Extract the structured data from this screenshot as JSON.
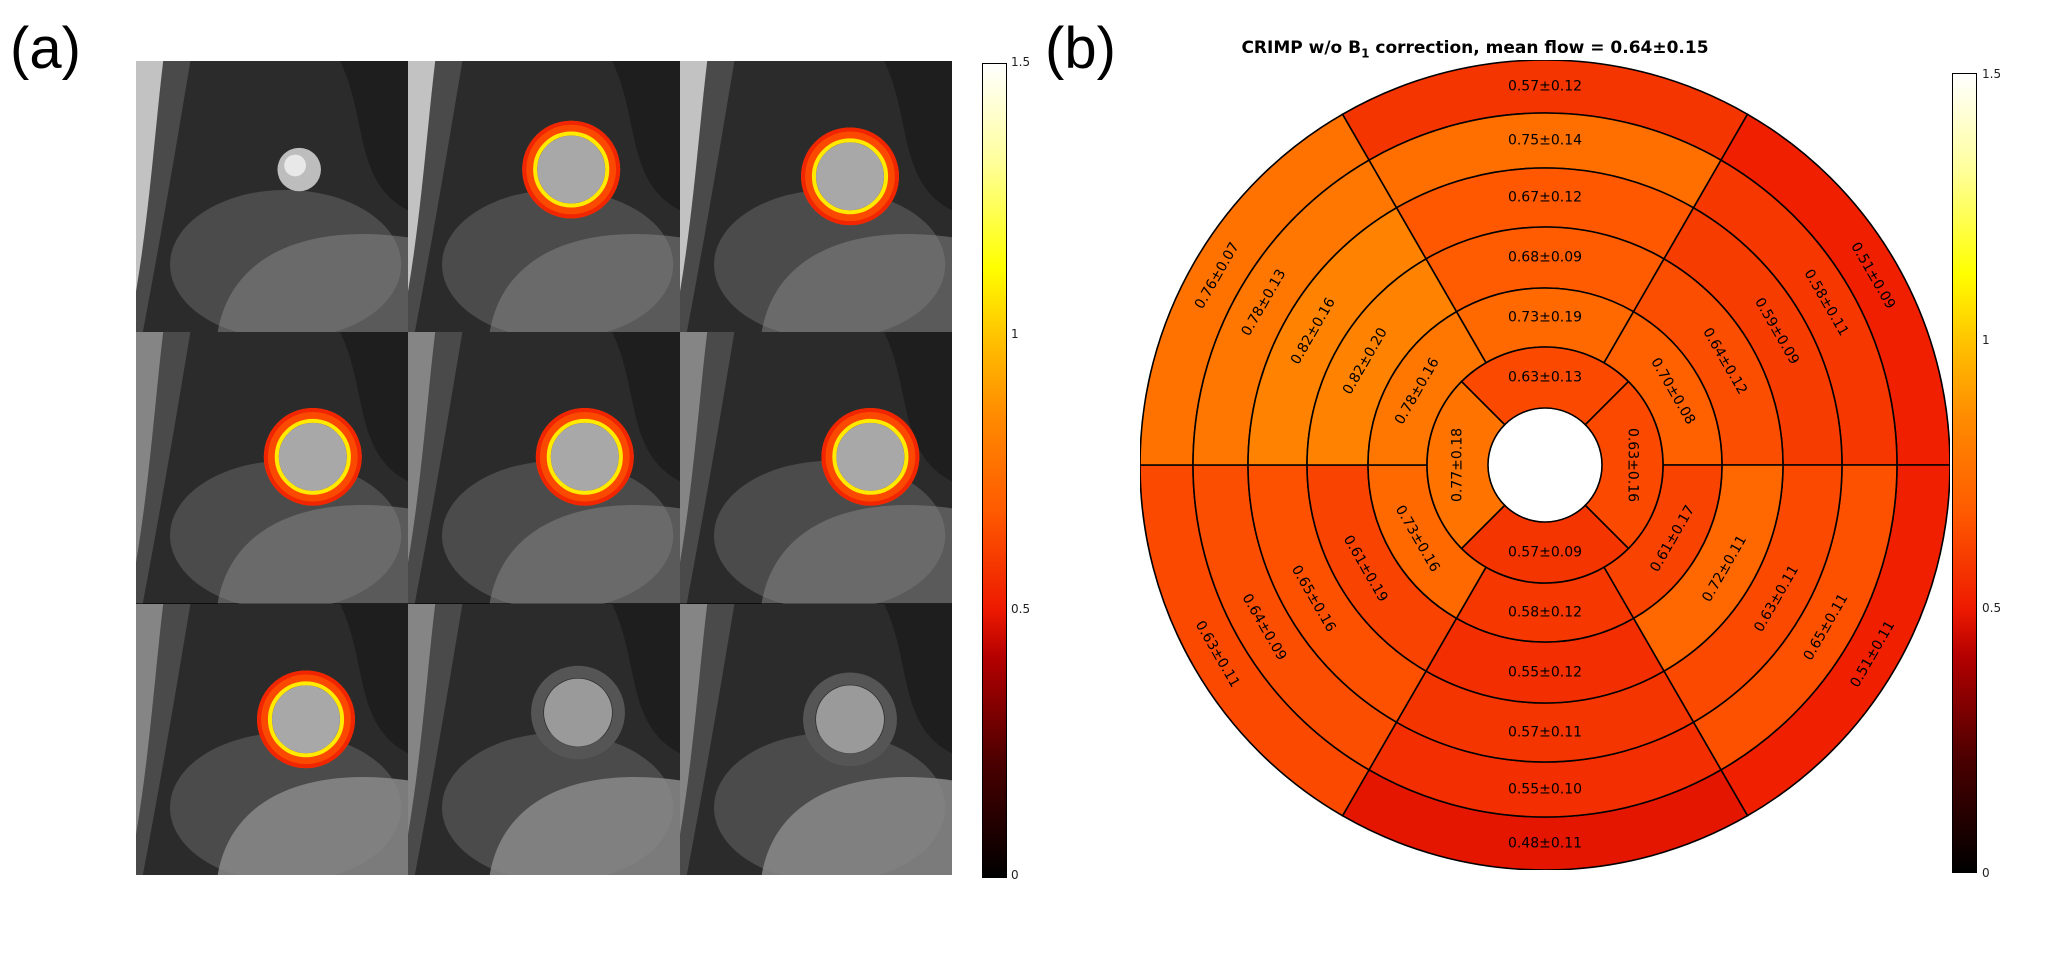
{
  "panel_labels": {
    "a": "(a)",
    "b": "(b)"
  },
  "colormap": {
    "name": "hot",
    "stops": [
      "#000000",
      "#4a0000",
      "#b40000",
      "#ee1a00",
      "#ff5a00",
      "#ff8c00",
      "#ffc000",
      "#ffff00",
      "#ffff9c",
      "#ffffff"
    ]
  },
  "images": {
    "rows": 3,
    "cols": 3,
    "overlay_present": [
      false,
      true,
      true,
      true,
      true,
      true,
      true,
      false,
      false
    ]
  },
  "colorbar_a": {
    "ticks": [
      "0",
      "0.5",
      "1",
      "1.5"
    ]
  },
  "colorbar_b": {
    "ticks": [
      "0",
      "0.5",
      "1",
      "1.5"
    ]
  },
  "chart_data": [
    {
      "type": "heatmap",
      "title": "CRIMP w/o B1 correction, mean flow = 0.64±0.15",
      "title_parts": {
        "pre": "CRIMP w/o B",
        "sub": "1",
        "post": " correction, mean flow = 0.64±0.15"
      },
      "colorbar": {
        "range": [
          0,
          1.5
        ],
        "ticks": [
          0,
          0.5,
          1,
          1.5
        ]
      },
      "segments": [
        {
          "ring": 0,
          "sector": 0,
          "value": 0.57,
          "label": "0.57±0.12"
        },
        {
          "ring": 0,
          "sector": 1,
          "value": 0.51,
          "label": "0.51±0.09"
        },
        {
          "ring": 0,
          "sector": 2,
          "value": 0.51,
          "label": "0.51±0.11"
        },
        {
          "ring": 0,
          "sector": 3,
          "value": 0.48,
          "label": "0.48±0.11"
        },
        {
          "ring": 0,
          "sector": 4,
          "value": 0.63,
          "label": "0.63±0.11"
        },
        {
          "ring": 0,
          "sector": 5,
          "value": 0.76,
          "label": "0.76±0.07"
        },
        {
          "ring": 1,
          "sector": 0,
          "value": 0.75,
          "label": "0.75±0.14"
        },
        {
          "ring": 1,
          "sector": 1,
          "value": 0.58,
          "label": "0.58±0.11"
        },
        {
          "ring": 1,
          "sector": 2,
          "value": 0.65,
          "label": "0.65±0.11"
        },
        {
          "ring": 1,
          "sector": 3,
          "value": 0.55,
          "label": "0.55±0.10"
        },
        {
          "ring": 1,
          "sector": 4,
          "value": 0.64,
          "label": "0.64±0.09"
        },
        {
          "ring": 1,
          "sector": 5,
          "value": 0.78,
          "label": "0.78±0.13"
        },
        {
          "ring": 2,
          "sector": 0,
          "value": 0.67,
          "label": "0.67±0.12"
        },
        {
          "ring": 2,
          "sector": 1,
          "value": 0.59,
          "label": "0.59±0.09"
        },
        {
          "ring": 2,
          "sector": 2,
          "value": 0.63,
          "label": "0.63±0.11"
        },
        {
          "ring": 2,
          "sector": 3,
          "value": 0.57,
          "label": "0.57±0.11"
        },
        {
          "ring": 2,
          "sector": 4,
          "value": 0.65,
          "label": "0.65±0.16"
        },
        {
          "ring": 2,
          "sector": 5,
          "value": 0.82,
          "label": "0.82±0.16"
        },
        {
          "ring": 3,
          "sector": 0,
          "value": 0.68,
          "label": "0.68±0.09"
        },
        {
          "ring": 3,
          "sector": 1,
          "value": 0.64,
          "label": "0.64±0.12"
        },
        {
          "ring": 3,
          "sector": 2,
          "value": 0.72,
          "label": "0.72±0.11"
        },
        {
          "ring": 3,
          "sector": 3,
          "value": 0.55,
          "label": "0.55±0.12"
        },
        {
          "ring": 3,
          "sector": 4,
          "value": 0.61,
          "label": "0.61±0.19"
        },
        {
          "ring": 3,
          "sector": 5,
          "value": 0.82,
          "label": "0.82±0.20"
        },
        {
          "ring": 4,
          "sector": 0,
          "value": 0.73,
          "label": "0.73±0.19"
        },
        {
          "ring": 4,
          "sector": 1,
          "value": 0.7,
          "label": "0.70±0.08"
        },
        {
          "ring": 4,
          "sector": 2,
          "value": 0.61,
          "label": "0.61±0.17"
        },
        {
          "ring": 4,
          "sector": 3,
          "value": 0.58,
          "label": "0.58±0.12"
        },
        {
          "ring": 4,
          "sector": 4,
          "value": 0.73,
          "label": "0.73±0.16"
        },
        {
          "ring": 4,
          "sector": 5,
          "value": 0.78,
          "label": "0.78±0.16"
        },
        {
          "ring": 5,
          "sector": 0,
          "value": 0.63,
          "label": "0.63±0.13"
        },
        {
          "ring": 5,
          "sector": 1,
          "value": 0.63,
          "label": "0.63±0.16"
        },
        {
          "ring": 5,
          "sector": 2,
          "value": 0.57,
          "label": "0.57±0.09"
        },
        {
          "ring": 5,
          "sector": 3,
          "value": 0.77,
          "label": "0.77±0.18"
        }
      ]
    }
  ]
}
